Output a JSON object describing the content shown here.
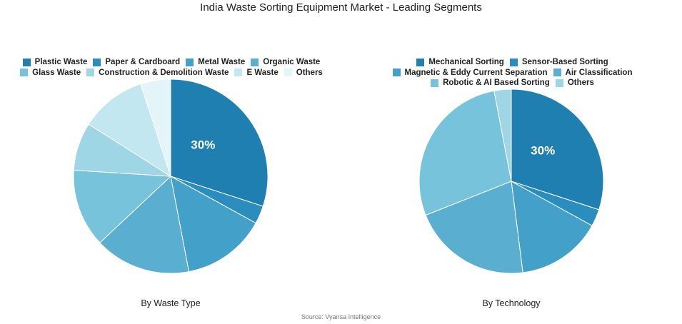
{
  "title": "India Waste Sorting Equipment Market - Leading Segments",
  "source": "Source: Vyansa Intelligence",
  "chart_data": [
    {
      "type": "pie",
      "subtitle": "By Waste Type",
      "categories": [
        "Plastic Waste",
        "Paper & Cardboard",
        "Metal Waste",
        "Organic Waste",
        "Glass Waste",
        "Construction & Demolition Waste",
        "E Waste",
        "Others"
      ],
      "values": [
        30,
        3,
        14,
        16,
        13,
        8,
        11,
        5
      ],
      "colors": [
        "#1f7fb0",
        "#2b8cbe",
        "#43a0c8",
        "#5aafd0",
        "#78c3dc",
        "#9ed6e6",
        "#c3e7f0",
        "#e4f5f9"
      ],
      "data_labels": [
        "30%",
        "",
        "",
        "",
        "",
        "",
        "",
        ""
      ]
    },
    {
      "type": "pie",
      "subtitle": "By Technology",
      "categories": [
        "Mechanical Sorting",
        "Sensor-Based Sorting",
        "Magnetic & Eddy Current Separation",
        "Air Classification",
        "Robotic & AI Based Sorting",
        "Others"
      ],
      "values": [
        30,
        3,
        15,
        21,
        28,
        3
      ],
      "colors": [
        "#1f7fb0",
        "#2b8cbe",
        "#43a0c8",
        "#5aafd0",
        "#78c3dc",
        "#9ed6e6"
      ],
      "data_labels": [
        "30%",
        "",
        "",
        "",
        "",
        ""
      ]
    }
  ]
}
